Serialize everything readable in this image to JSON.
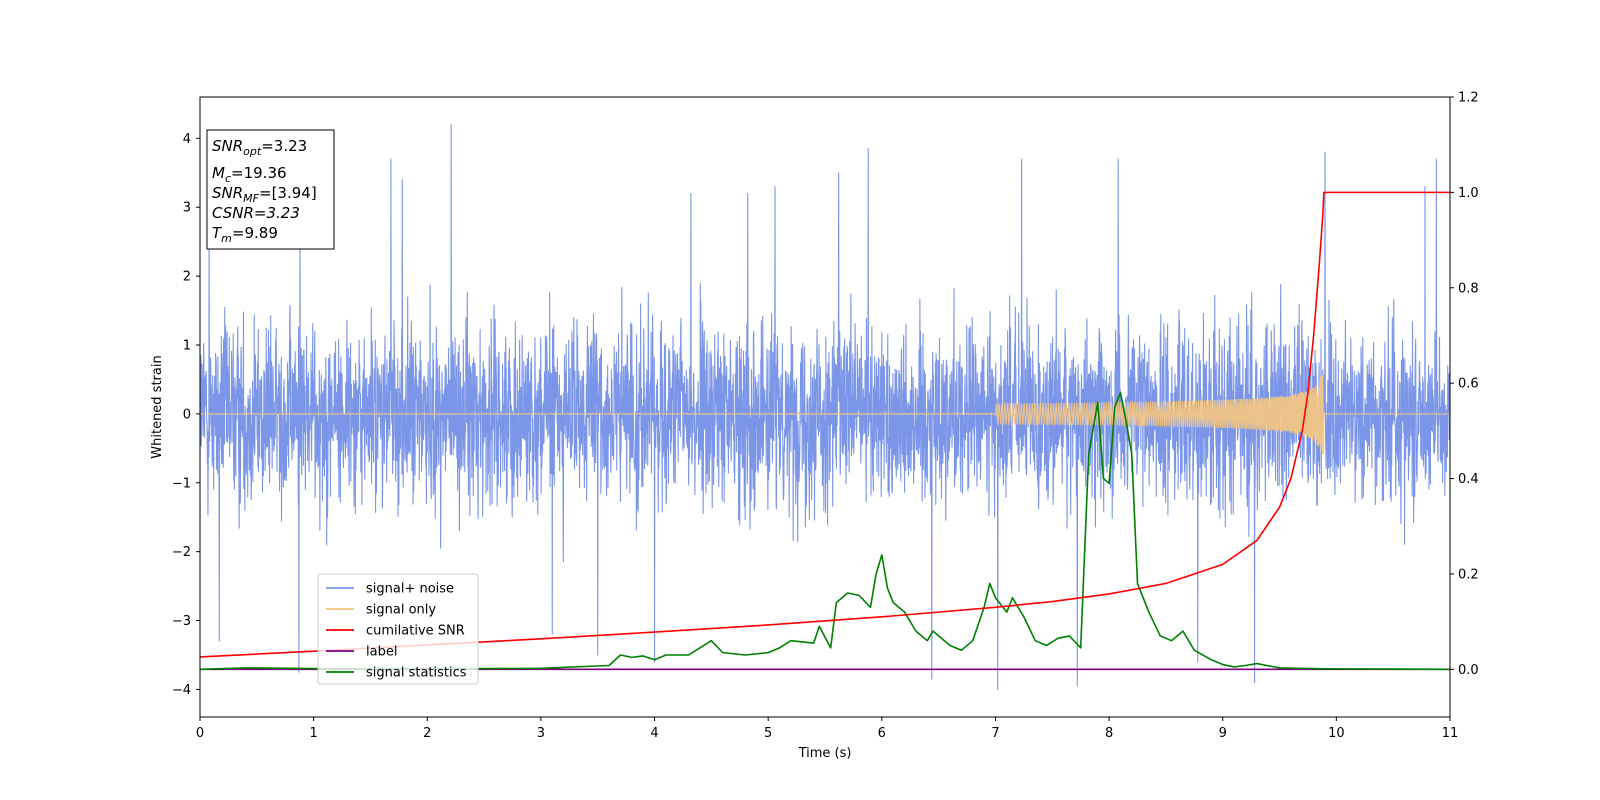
{
  "chart_data": {
    "type": "line",
    "xlabel": "Time (s)",
    "ylabel": "Whitened strain",
    "xlim": [
      0,
      11
    ],
    "ylim": [
      -4.4,
      4.6
    ],
    "y2lim": [
      -0.1,
      1.2
    ],
    "xticks": [
      "0",
      "1",
      "2",
      "3",
      "4",
      "5",
      "6",
      "7",
      "8",
      "9",
      "10",
      "11"
    ],
    "yticks": [
      "−4",
      "−3",
      "−2",
      "−1",
      "0",
      "1",
      "2",
      "3",
      "4"
    ],
    "y2ticks": [
      "0.0",
      "0.2",
      "0.4",
      "0.6",
      "0.8",
      "1.0",
      "1.2"
    ],
    "grid": false,
    "legend_position": "lower-left",
    "legend": [
      {
        "label": "signal+ noise",
        "color": "#7b96e8"
      },
      {
        "label": "signal only",
        "color": "#f6c77f"
      },
      {
        "label": "cumilative SNR",
        "color": "#ff0000"
      },
      {
        "label": "label",
        "color": "#800080"
      },
      {
        "label": "signal statistics",
        "color": "#008000"
      }
    ],
    "info_box": {
      "snr_opt": {
        "main": "SNR",
        "sub": "opt",
        "value": "=3.23"
      },
      "mc": {
        "main": "M",
        "sub": "c",
        "value": "=19.36"
      },
      "snr_mf": {
        "main": "SNR",
        "sub": "MF",
        "value": "=[3.94]"
      },
      "csnr": "CSNR=3.23",
      "tm": {
        "main": "T",
        "sub": "m",
        "value": "=9.89"
      }
    },
    "series": [
      {
        "name": "signal+ noise",
        "axis": "left",
        "color": "#7b96e8",
        "description": "dense noise, roughly within [-2.4, 2.4] with spikes",
        "spikes": [
          [
            0.08,
            2.7
          ],
          [
            0.17,
            -3.3
          ],
          [
            0.87,
            -3.75
          ],
          [
            0.88,
            3.2
          ],
          [
            1.68,
            3.7
          ],
          [
            1.78,
            3.4
          ],
          [
            2.21,
            4.2
          ],
          [
            3.1,
            -3.2
          ],
          [
            3.5,
            -3.5
          ],
          [
            4.0,
            -3.6
          ],
          [
            4.32,
            3.2
          ],
          [
            4.82,
            3.2
          ],
          [
            5.06,
            3.3
          ],
          [
            5.62,
            3.5
          ],
          [
            5.88,
            3.85
          ],
          [
            6.44,
            -3.85
          ],
          [
            7.02,
            -4.0
          ],
          [
            7.23,
            3.7
          ],
          [
            7.72,
            -3.95
          ],
          [
            8.08,
            3.7
          ],
          [
            8.78,
            -3.6
          ],
          [
            9.28,
            -3.9
          ],
          [
            9.9,
            3.8
          ],
          [
            10.78,
            3.3
          ],
          [
            10.88,
            3.7
          ]
        ]
      },
      {
        "name": "signal only",
        "axis": "left",
        "color": "#f6c77f",
        "description": "chirp, amplitude growing to ~0.6 at merger t=9.89, zero after",
        "t_merger": 9.89,
        "peak_amplitude": 0.6
      },
      {
        "name": "cumilative SNR",
        "axis": "right",
        "color": "#ff0000",
        "x": [
          0,
          1,
          2,
          3,
          4,
          5,
          6,
          7,
          7.5,
          8,
          8.5,
          9,
          9.3,
          9.5,
          9.6,
          9.7,
          9.75,
          9.8,
          9.85,
          9.88,
          9.89,
          11
        ],
        "y": [
          0.026,
          0.038,
          0.051,
          0.064,
          0.078,
          0.093,
          0.11,
          0.13,
          0.142,
          0.158,
          0.18,
          0.22,
          0.27,
          0.34,
          0.4,
          0.5,
          0.58,
          0.7,
          0.85,
          0.95,
          1.0,
          1.0
        ]
      },
      {
        "name": "label",
        "axis": "right",
        "color": "#800080",
        "x": [
          0,
          11
        ],
        "y": [
          0,
          0
        ]
      },
      {
        "name": "signal statistics",
        "axis": "right",
        "color": "#008000",
        "x": [
          0,
          0.4,
          0.8,
          1.2,
          2.0,
          3.0,
          3.6,
          3.7,
          3.8,
          3.9,
          4.0,
          4.1,
          4.3,
          4.4,
          4.5,
          4.6,
          4.8,
          5.0,
          5.1,
          5.2,
          5.4,
          5.45,
          5.55,
          5.6,
          5.7,
          5.8,
          5.9,
          5.95,
          6.0,
          6.05,
          6.1,
          6.2,
          6.3,
          6.4,
          6.45,
          6.5,
          6.6,
          6.7,
          6.8,
          6.9,
          6.95,
          7.0,
          7.1,
          7.15,
          7.25,
          7.35,
          7.45,
          7.55,
          7.65,
          7.75,
          7.82,
          7.9,
          7.95,
          8.0,
          8.05,
          8.1,
          8.15,
          8.2,
          8.25,
          8.35,
          8.45,
          8.55,
          8.65,
          8.75,
          8.9,
          9.0,
          9.1,
          9.2,
          9.3,
          9.5,
          9.89,
          11
        ],
        "y": [
          0,
          0.003,
          0.002,
          0.001,
          0.001,
          0.002,
          0.008,
          0.03,
          0.025,
          0.028,
          0.02,
          0.03,
          0.03,
          0.045,
          0.06,
          0.035,
          0.03,
          0.035,
          0.045,
          0.06,
          0.055,
          0.09,
          0.045,
          0.14,
          0.16,
          0.155,
          0.13,
          0.2,
          0.24,
          0.17,
          0.14,
          0.12,
          0.08,
          0.06,
          0.08,
          0.07,
          0.05,
          0.04,
          0.06,
          0.13,
          0.18,
          0.15,
          0.12,
          0.15,
          0.11,
          0.06,
          0.05,
          0.065,
          0.07,
          0.045,
          0.45,
          0.56,
          0.4,
          0.39,
          0.55,
          0.58,
          0.52,
          0.45,
          0.18,
          0.12,
          0.07,
          0.06,
          0.08,
          0.04,
          0.02,
          0.01,
          0.005,
          0.008,
          0.012,
          0.003,
          0.001,
          0
        ]
      }
    ]
  }
}
